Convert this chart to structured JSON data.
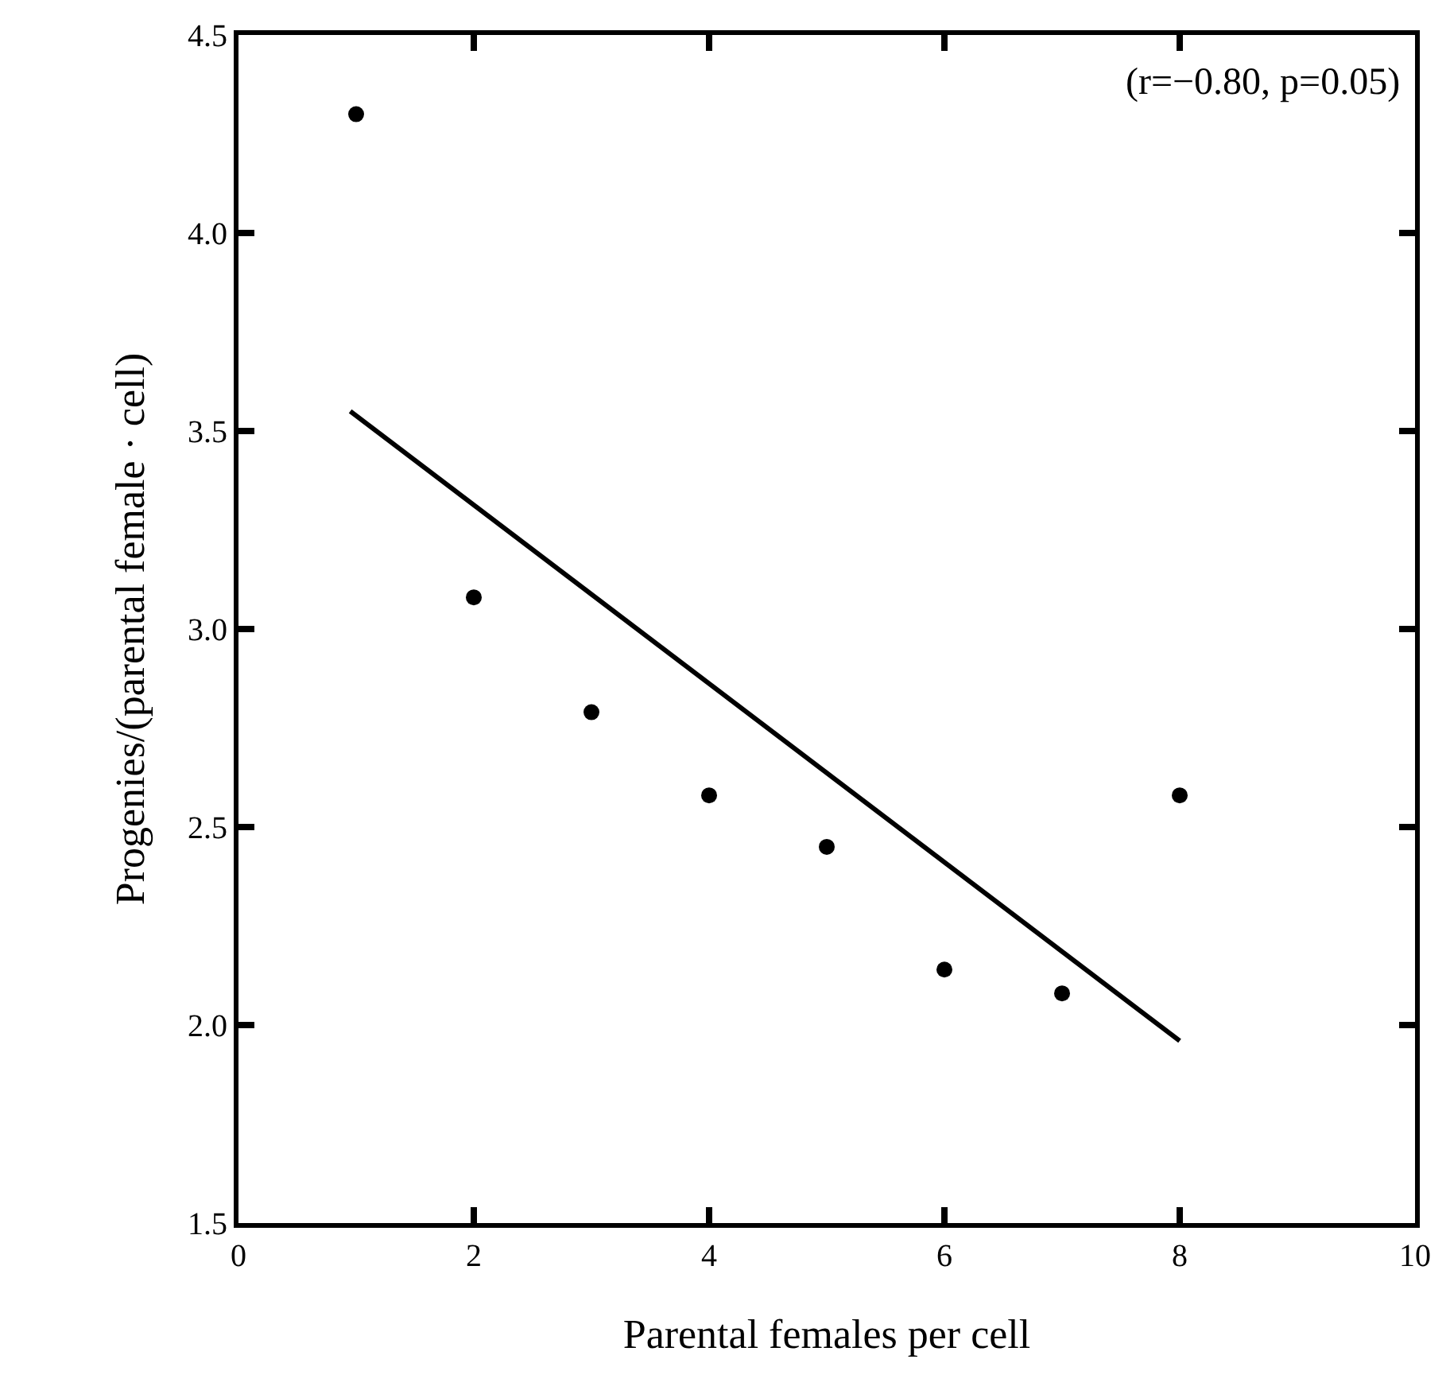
{
  "chart_data": {
    "type": "scatter",
    "xlabel": "Parental females per cell",
    "ylabel": "Progenies/(parental female · cell)",
    "x": [
      1,
      2,
      3,
      4,
      5,
      6,
      7,
      8
    ],
    "series": [
      {
        "color": "#000000",
        "marker": "circle",
        "values": [
          4.3,
          3.08,
          2.79,
          2.58,
          2.45,
          2.14,
          2.08,
          2.58
        ]
      },
      {
        "type": "line",
        "color": "#000000",
        "x": [
          0.95,
          8
        ],
        "values": [
          3.55,
          1.96
        ]
      }
    ],
    "annotations": [
      "(r=−0.80, p=0.05)"
    ],
    "xlim": [
      0,
      10
    ],
    "xticks": [
      0,
      2,
      4,
      6,
      8,
      10
    ],
    "ylim": [
      1.5,
      4.5
    ],
    "yticks": [
      {
        "value": 1.5,
        "label": "1.5"
      },
      {
        "value": 2.0,
        "label": "2.0"
      },
      {
        "value": 2.5,
        "label": "2.5"
      },
      {
        "value": 3.0,
        "label": "3.0"
      },
      {
        "value": 3.5,
        "label": "3.5"
      },
      {
        "value": 4.0,
        "label": "4.0"
      },
      {
        "value": 4.5,
        "label": "4.5"
      }
    ],
    "tick_labels": [
      "x",
      "y"
    ]
  }
}
